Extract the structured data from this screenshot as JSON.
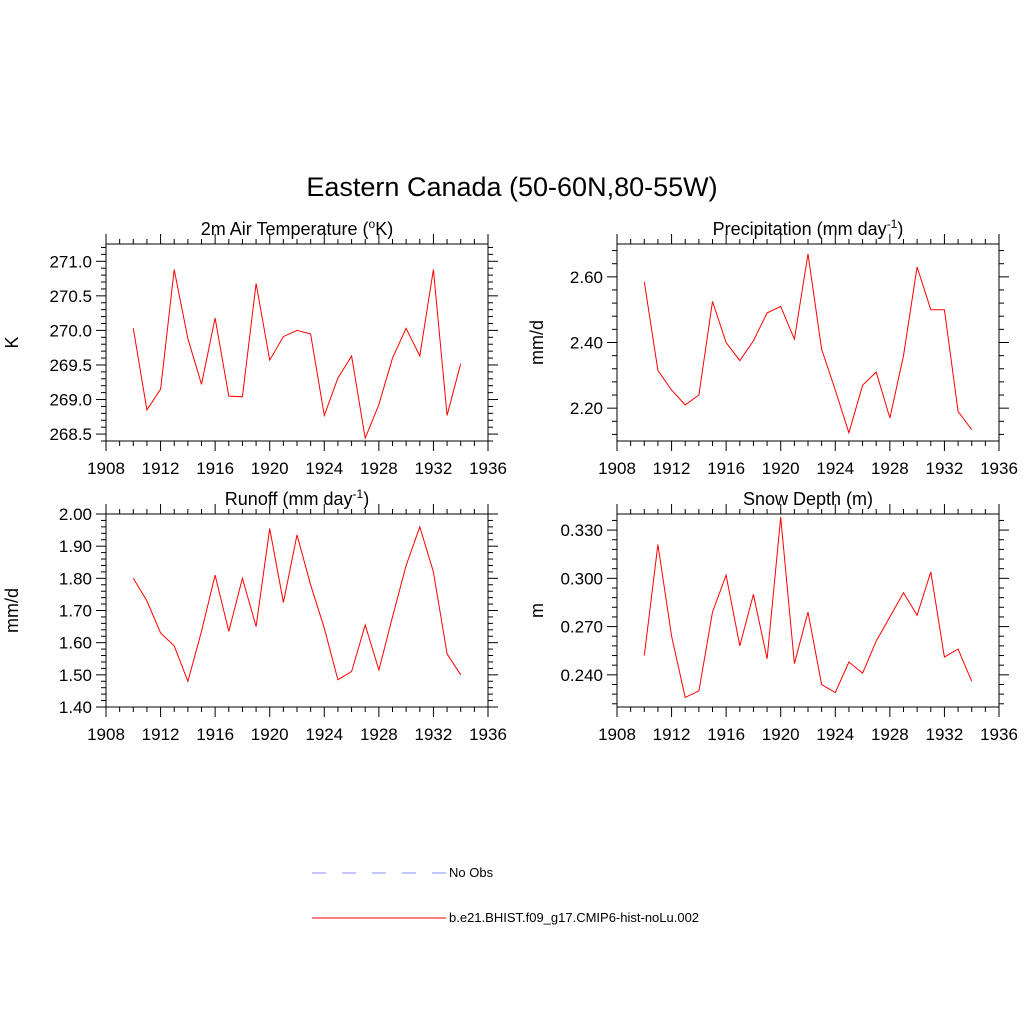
{
  "title": "Eastern Canada (50-60N,80-55W)",
  "colors": {
    "model": "#ff0000",
    "obs": "#8c8cff",
    "axis": "#000000"
  },
  "legend": [
    {
      "label": "No Obs",
      "style": "dashed",
      "color": "#8c8cff"
    },
    {
      "label": "b.e21.BHIST.f09_g17.CMIP6-hist-noLu.002",
      "style": "solid",
      "color": "#ff0000"
    }
  ],
  "chart_data": [
    {
      "type": "line",
      "title": "2m Air Temperature (",
      "title_unit_base": "K",
      "title_sup": "o",
      "title_suffix": ")",
      "ylabel": "K",
      "xlim": [
        1908,
        1936
      ],
      "ylim": [
        268.4,
        271.25
      ],
      "x_ticks": [
        "1908",
        "1912",
        "1916",
        "1920",
        "1924",
        "1928",
        "1932",
        "1936"
      ],
      "y_ticks": [
        "268.5",
        "269.0",
        "269.5",
        "270.0",
        "270.5",
        "271.0"
      ],
      "x": [
        1910,
        1911,
        1912,
        1913,
        1914,
        1915,
        1916,
        1917,
        1918,
        1919,
        1920,
        1921,
        1922,
        1923,
        1924,
        1925,
        1926,
        1927,
        1928,
        1929,
        1930,
        1931,
        1932,
        1933,
        1934
      ],
      "series": [
        {
          "values": [
            270.03,
            268.85,
            269.15,
            270.88,
            269.88,
            269.22,
            270.18,
            269.05,
            269.04,
            270.68,
            269.57,
            269.91,
            270.0,
            269.95,
            268.77,
            269.31,
            269.63,
            268.44,
            268.93,
            269.6,
            270.03,
            269.63,
            270.88,
            268.77,
            269.52
          ]
        }
      ]
    },
    {
      "type": "line",
      "title": "Precipitation (mm day",
      "title_sup": "-1",
      "title_suffix": ")",
      "ylabel": "mm/d",
      "xlim": [
        1908,
        1936
      ],
      "ylim": [
        2.1,
        2.7
      ],
      "x_ticks": [
        "1908",
        "1912",
        "1916",
        "1920",
        "1924",
        "1928",
        "1932",
        "1936"
      ],
      "y_ticks": [
        "2.20",
        "2.40",
        "2.60"
      ],
      "x": [
        1910,
        1911,
        1912,
        1913,
        1914,
        1915,
        1916,
        1917,
        1918,
        1919,
        1920,
        1921,
        1922,
        1923,
        1924,
        1925,
        1926,
        1927,
        1928,
        1929,
        1930,
        1931,
        1932,
        1933,
        1934
      ],
      "series": [
        {
          "values": [
            2.585,
            2.315,
            2.255,
            2.21,
            2.24,
            2.525,
            2.4,
            2.345,
            2.405,
            2.49,
            2.51,
            2.41,
            2.67,
            2.38,
            2.255,
            2.125,
            2.27,
            2.31,
            2.17,
            2.36,
            2.63,
            2.5,
            2.5,
            2.19,
            2.135
          ]
        }
      ]
    },
    {
      "type": "line",
      "title": "Runoff (mm day",
      "title_sup": "-1",
      "title_suffix": ")",
      "ylabel": "mm/d",
      "xlim": [
        1908,
        1936
      ],
      "ylim": [
        1.4,
        2.0
      ],
      "x_ticks": [
        "1908",
        "1912",
        "1916",
        "1920",
        "1924",
        "1928",
        "1932",
        "1936"
      ],
      "y_ticks": [
        "1.40",
        "1.50",
        "1.60",
        "1.70",
        "1.80",
        "1.90",
        "2.00"
      ],
      "x": [
        1910,
        1911,
        1912,
        1913,
        1914,
        1915,
        1916,
        1917,
        1918,
        1919,
        1920,
        1921,
        1922,
        1923,
        1924,
        1925,
        1926,
        1927,
        1928,
        1929,
        1930,
        1931,
        1932,
        1933,
        1934
      ],
      "series": [
        {
          "values": [
            1.8,
            1.73,
            1.63,
            1.59,
            1.48,
            1.635,
            1.81,
            1.635,
            1.8,
            1.65,
            1.955,
            1.725,
            1.935,
            1.78,
            1.645,
            1.485,
            1.51,
            1.655,
            1.515,
            1.68,
            1.84,
            1.96,
            1.82,
            1.565,
            1.5
          ]
        }
      ]
    },
    {
      "type": "line",
      "title": "Snow Depth (m)",
      "title_sup": "",
      "title_suffix": "",
      "ylabel": "m",
      "xlim": [
        1908,
        1936
      ],
      "ylim": [
        0.22,
        0.34
      ],
      "x_ticks": [
        "1908",
        "1912",
        "1916",
        "1920",
        "1924",
        "1928",
        "1932",
        "1936"
      ],
      "y_ticks": [
        "0.240",
        "0.270",
        "0.300",
        "0.330"
      ],
      "x": [
        1910,
        1911,
        1912,
        1913,
        1914,
        1915,
        1916,
        1917,
        1918,
        1919,
        1920,
        1921,
        1922,
        1923,
        1924,
        1925,
        1926,
        1927,
        1928,
        1929,
        1930,
        1931,
        1932,
        1933,
        1934
      ],
      "series": [
        {
          "values": [
            0.252,
            0.321,
            0.264,
            0.226,
            0.23,
            0.279,
            0.302,
            0.258,
            0.29,
            0.25,
            0.338,
            0.247,
            0.279,
            0.234,
            0.229,
            0.248,
            0.241,
            0.261,
            0.276,
            0.291,
            0.277,
            0.304,
            0.251,
            0.256,
            0.236
          ]
        }
      ]
    }
  ]
}
